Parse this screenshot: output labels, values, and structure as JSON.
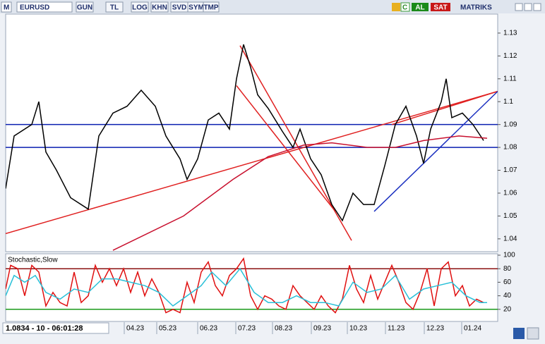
{
  "toolbar": {
    "logo": "M",
    "symbol": "EURUSD",
    "buttons": [
      "GUN",
      "TL",
      "LOG",
      "KHN",
      "SVD",
      "SYM",
      "TMP"
    ],
    "refresh": "C",
    "buy": "AL",
    "sell": "SAT",
    "brand": "MATRIKS"
  },
  "status": "1.0834 - 10 - 06:01:28",
  "chart_data": [
    {
      "type": "line",
      "ylim": [
        1.0344,
        1.1383
      ],
      "yticks": [
        1.04,
        1.05,
        1.06,
        1.07,
        1.08,
        1.09,
        1.1,
        1.11,
        1.12,
        1.13
      ],
      "xlim": [
        8,
        705
      ],
      "xticks": [
        {
          "value": 176,
          "label": "04.23"
        },
        {
          "value": 222,
          "label": "05.23"
        },
        {
          "value": 280,
          "label": "06.23"
        },
        {
          "value": 334,
          "label": "07.23"
        },
        {
          "value": 386,
          "label": "08.23"
        },
        {
          "value": 441,
          "label": "09.23"
        },
        {
          "value": 492,
          "label": "10.23"
        },
        {
          "value": 546,
          "label": "11.23"
        },
        {
          "value": 601,
          "label": "12.23"
        },
        {
          "value": 654,
          "label": "01.24"
        }
      ],
      "series": [
        {
          "color": "#000000",
          "x": [
            8,
            20,
            45,
            55,
            65,
            80,
            100,
            125,
            140,
            160,
            180,
            200,
            220,
            235,
            255,
            265,
            280,
            295,
            310,
            325,
            335,
            345,
            355,
            365,
            380,
            400,
            415,
            425,
            440,
            455,
            470,
            485,
            500,
            515,
            530,
            545,
            560,
            575,
            590,
            600,
            610,
            625,
            632,
            640,
            655,
            670,
            685
          ],
          "values": [
            1.062,
            1.085,
            1.09,
            1.1,
            1.078,
            1.07,
            1.058,
            1.053,
            1.085,
            1.095,
            1.098,
            1.105,
            1.098,
            1.085,
            1.075,
            1.066,
            1.075,
            1.092,
            1.095,
            1.088,
            1.11,
            1.125,
            1.115,
            1.103,
            1.097,
            1.087,
            1.08,
            1.088,
            1.075,
            1.068,
            1.055,
            1.048,
            1.06,
            1.055,
            1.055,
            1.072,
            1.09,
            1.098,
            1.085,
            1.073,
            1.088,
            1.1,
            1.11,
            1.093,
            1.095,
            1.09,
            1.083
          ]
        },
        {
          "color": "#c8102e",
          "x": [
            160,
            260,
            330,
            380,
            430,
            470,
            520,
            560,
            600,
            650,
            690
          ],
          "values": [
            1.035,
            1.05,
            1.066,
            1.076,
            1.081,
            1.082,
            1.08,
            1.08,
            1.083,
            1.085,
            1.084
          ]
        }
      ],
      "hlines": [
        {
          "value": 1.09,
          "color": "#0a1fb0"
        },
        {
          "value": 1.08,
          "color": "#0a1fb0"
        }
      ],
      "trendlines": [
        {
          "color": "#e02020",
          "x": [
            8,
            705
          ],
          "values": [
            1.0423,
            1.1045
          ]
        },
        {
          "color": "#e02020",
          "x": [
            340,
            498
          ],
          "values": [
            1.1245,
            1.0393
          ]
        },
        {
          "color": "#e02020",
          "x": [
            335,
            475
          ],
          "values": [
            1.107,
            1.052
          ]
        },
        {
          "color": "#e02020",
          "x": [
            555,
            705
          ],
          "values": [
            1.09,
            1.1045
          ]
        },
        {
          "color": "#1a2fc0",
          "x": [
            530,
            705
          ],
          "values": [
            1.052,
            1.1045
          ]
        }
      ]
    },
    {
      "type": "line",
      "title": "Stochastic,Slow",
      "ylim": [
        0,
        100
      ],
      "yticks": [
        20,
        40,
        60,
        80,
        100
      ],
      "xlim": [
        8,
        705
      ],
      "series": [
        {
          "color": "#e01010",
          "x": [
            8,
            15,
            25,
            35,
            45,
            55,
            65,
            75,
            85,
            95,
            105,
            115,
            125,
            135,
            145,
            155,
            165,
            175,
            185,
            195,
            205,
            215,
            225,
            235,
            245,
            255,
            265,
            275,
            285,
            295,
            305,
            315,
            325,
            335,
            345,
            355,
            365,
            375,
            385,
            395,
            405,
            415,
            425,
            435,
            445,
            455,
            465,
            475,
            485,
            495,
            505,
            515,
            525,
            535,
            545,
            555,
            565,
            575,
            585,
            595,
            605,
            615,
            625,
            635,
            645,
            655,
            665,
            675,
            685
          ],
          "values": [
            50,
            85,
            80,
            40,
            85,
            75,
            25,
            45,
            30,
            25,
            75,
            30,
            40,
            85,
            60,
            80,
            55,
            80,
            45,
            75,
            40,
            65,
            45,
            15,
            20,
            15,
            60,
            30,
            75,
            90,
            55,
            40,
            70,
            80,
            95,
            40,
            20,
            40,
            35,
            25,
            20,
            55,
            40,
            30,
            20,
            40,
            25,
            15,
            35,
            85,
            50,
            30,
            70,
            35,
            60,
            85,
            60,
            30,
            20,
            45,
            80,
            25,
            80,
            90,
            40,
            55,
            25,
            35,
            30
          ]
        },
        {
          "color": "#29c0d8",
          "x": [
            8,
            20,
            35,
            50,
            65,
            85,
            105,
            125,
            145,
            165,
            185,
            205,
            225,
            245,
            265,
            285,
            300,
            320,
            340,
            360,
            380,
            400,
            420,
            440,
            460,
            480,
            500,
            520,
            540,
            560,
            580,
            600,
            620,
            640,
            660,
            680,
            690
          ],
          "values": [
            40,
            70,
            60,
            70,
            45,
            35,
            50,
            45,
            65,
            65,
            60,
            55,
            45,
            25,
            40,
            55,
            75,
            55,
            80,
            45,
            30,
            30,
            40,
            30,
            30,
            25,
            60,
            45,
            50,
            70,
            35,
            50,
            55,
            60,
            40,
            30,
            30
          ]
        }
      ],
      "hlines": [
        {
          "value": 80,
          "color": "#8b1010"
        },
        {
          "value": 20,
          "color": "#1a9a1a"
        }
      ],
      "trendlines": []
    }
  ]
}
